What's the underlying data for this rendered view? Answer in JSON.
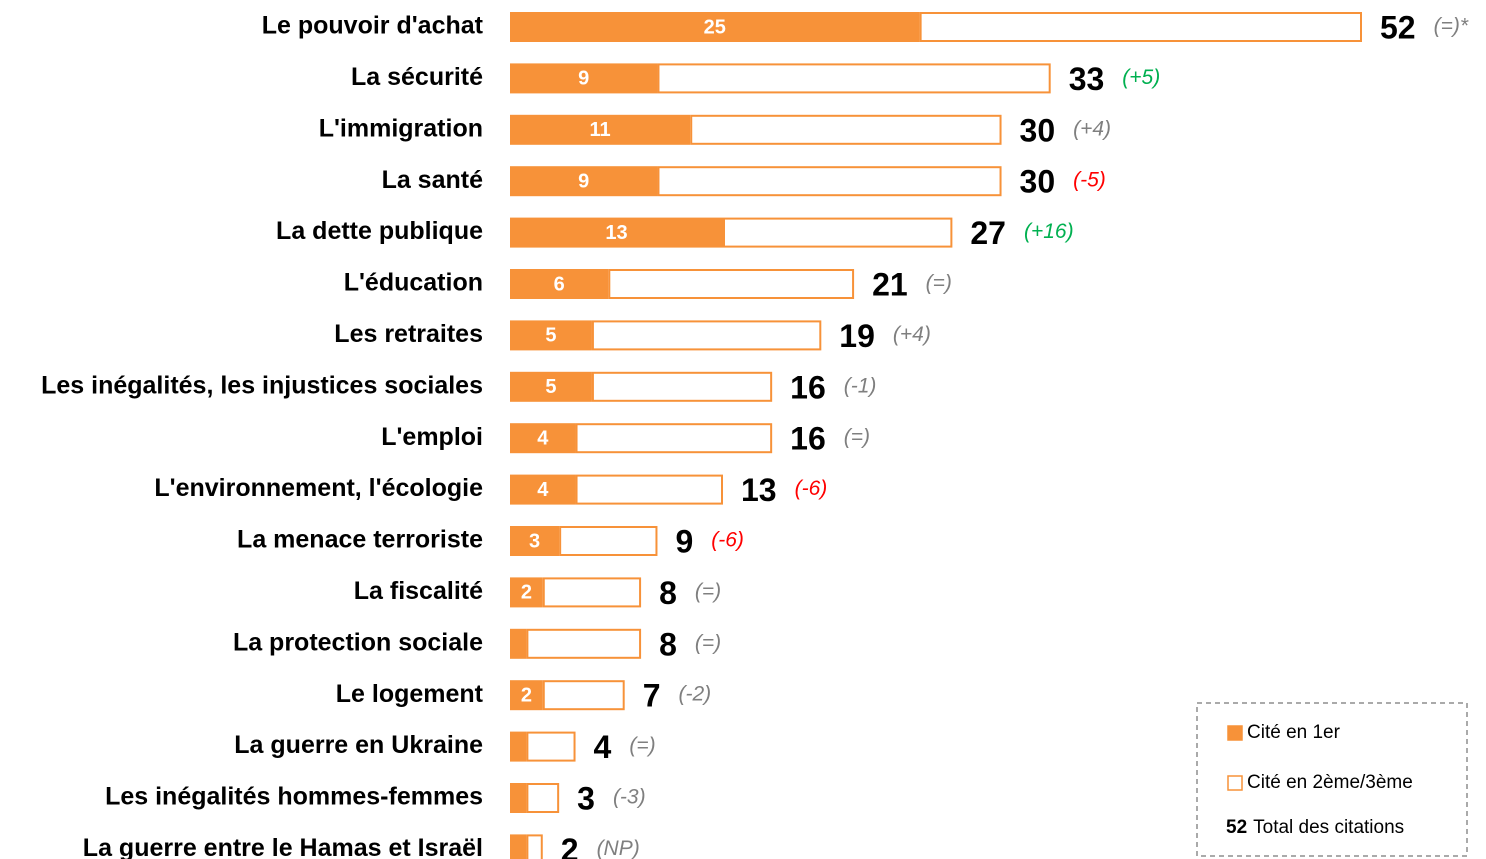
{
  "chart_data": {
    "type": "bar",
    "orientation": "horizontal",
    "stacked": true,
    "categories": [
      "Le pouvoir d'achat",
      "La sécurité",
      "L'immigration",
      "La santé",
      "La dette publique",
      "L'éducation",
      "Les retraites",
      "Les inégalités, les injustices sociales",
      "L'emploi",
      "L'environnement, l'écologie",
      "La menace terroriste",
      "La fiscalité",
      "La protection sociale",
      "Le logement",
      "La guerre en Ukraine",
      "Les inégalités hommes-femmes",
      "La guerre entre le Hamas et Israël"
    ],
    "series": [
      {
        "name": "Cité en 1er",
        "color": "#f79239",
        "values": [
          25,
          9,
          11,
          9,
          13,
          6,
          5,
          5,
          4,
          4,
          3,
          2,
          1,
          2,
          1,
          1,
          1
        ]
      },
      {
        "name": "Cité en 2ème/3ème",
        "color": "#ffffff",
        "edge": "#f79239",
        "values": [
          27,
          24,
          19,
          21,
          14,
          15,
          14,
          11,
          12,
          9,
          6,
          6,
          7,
          5,
          3,
          2,
          1
        ]
      }
    ],
    "totals": [
      52,
      33,
      30,
      30,
      27,
      21,
      19,
      16,
      16,
      13,
      9,
      8,
      8,
      7,
      4,
      3,
      2
    ],
    "changes": [
      "(=)*",
      "(+5)",
      "(+4)",
      "(-5)",
      "(+16)",
      "(=)",
      "(+4)",
      "(-1)",
      "(=)",
      "(-6)",
      "(-6)",
      "(=)",
      "(=)",
      "(-2)",
      "(=)",
      "(-3)",
      "(NP)"
    ],
    "change_colors": [
      "#7f7f7f",
      "#00b050",
      "#7f7f7f",
      "#ff0000",
      "#00b050",
      "#7f7f7f",
      "#7f7f7f",
      "#7f7f7f",
      "#7f7f7f",
      "#ff0000",
      "#ff0000",
      "#7f7f7f",
      "#7f7f7f",
      "#7f7f7f",
      "#7f7f7f",
      "#7f7f7f",
      "#7f7f7f"
    ],
    "legend_total": {
      "number": 52,
      "text": "Total des citations"
    },
    "xlim": [
      0,
      52
    ]
  }
}
